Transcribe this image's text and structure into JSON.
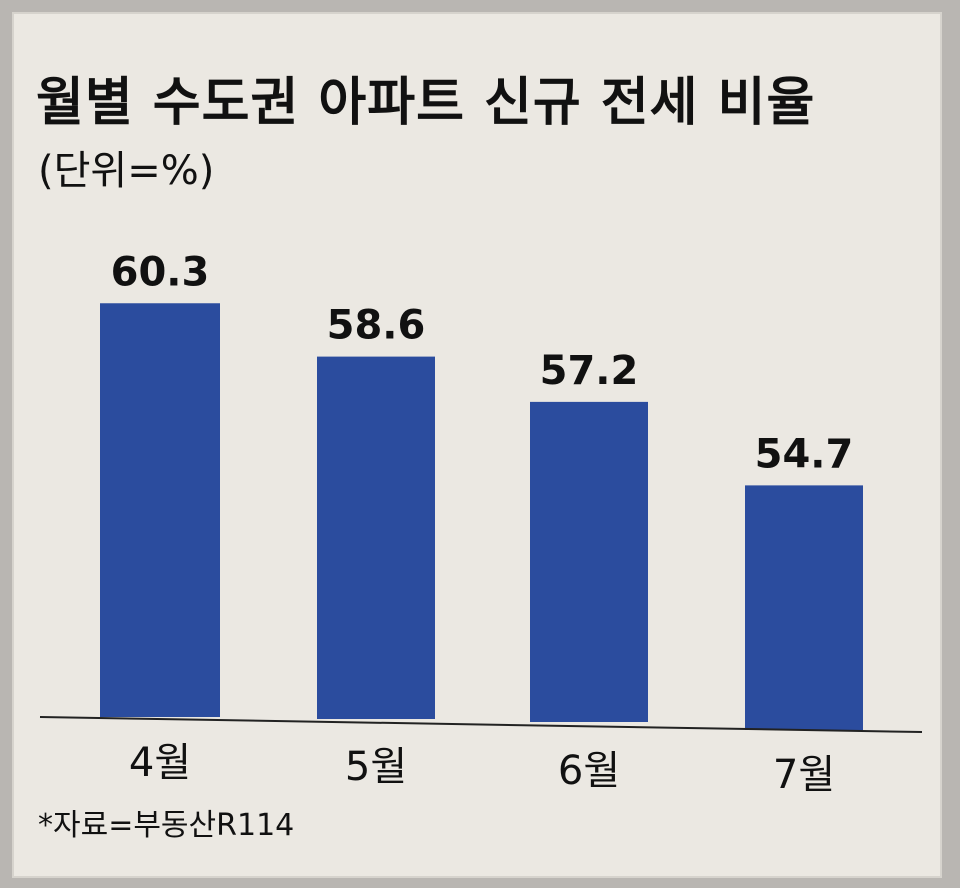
{
  "chart_data": {
    "type": "bar",
    "title": "월별 수도권 아파트 신규 전세 비율",
    "unit_label": "(단위=%)",
    "source": "*자료=부동산R114",
    "categories": [
      "4월",
      "5월",
      "6월",
      "7월"
    ],
    "values": [
      60.3,
      58.6,
      57.2,
      54.7
    ],
    "value_labels": [
      "60.3",
      "58.6",
      "57.2",
      "54.7"
    ],
    "bar_color": "#2b4c9e",
    "grid": false,
    "legend": "none"
  }
}
